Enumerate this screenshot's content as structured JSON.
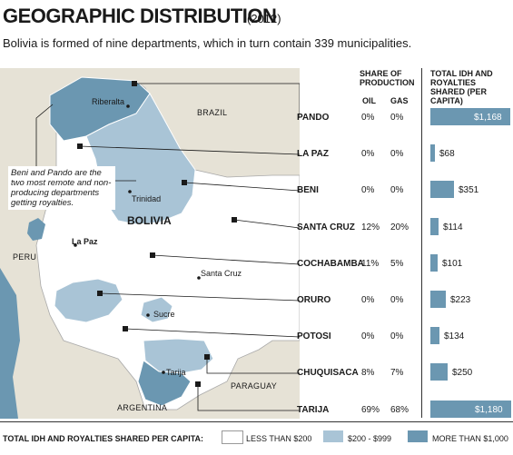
{
  "header": {
    "title": "GEOGRAPHIC DISTRIBUTION",
    "year": "(2012)",
    "subtitle": "Bolivia is formed of nine departments, which in turn contain 339 municipalities."
  },
  "table_headers": {
    "share": "SHARE OF PRODUCTION",
    "oil": "OIL",
    "gas": "GAS",
    "total": "TOTAL IDH AND ROYALTIES SHARED (PER CAPITA)"
  },
  "annotation": "Beni and Pando are the two most remote and non-producing departments getting royalties.",
  "map_labels": {
    "brazil": "BRAZIL",
    "bolivia": "BOLIVIA",
    "peru": "PERU",
    "paraguay": "PARAGUAY",
    "argentina": "ARGENTINA",
    "riberalta": "Riberalta",
    "trinidad": "Trinidad",
    "la_paz": "La Paz",
    "santa_cruz": "Santa Cruz",
    "sucre": "Sucre",
    "tarija": "Tarija"
  },
  "legend": {
    "title": "TOTAL IDH AND ROYALTIES SHARED PER CAPITA:",
    "items": [
      {
        "label": "LESS THAN $200",
        "color": "#ffffff"
      },
      {
        "label": "$200 - $999",
        "color": "#a9c4d6"
      },
      {
        "label": "MORE THAN $1,000",
        "color": "#6b97b1"
      }
    ]
  },
  "colors": {
    "low": "#ffffff",
    "mid": "#a9c4d6",
    "high": "#6b97b1",
    "neighbor": "#e6e2d6",
    "water": "#6b97b1"
  },
  "chart_data": {
    "type": "bar",
    "categories": [
      "PANDO",
      "LA PAZ",
      "BENI",
      "SANTA CRUZ",
      "COCHABAMBA",
      "ORURO",
      "POTOSI",
      "CHUQUISACA",
      "TARIJA"
    ],
    "oil_share": [
      "0%",
      "0%",
      "0%",
      "12%",
      "11%",
      "0%",
      "0%",
      "8%",
      "69%"
    ],
    "gas_share": [
      "0%",
      "0%",
      "0%",
      "20%",
      "5%",
      "0%",
      "0%",
      "7%",
      "68%"
    ],
    "values": [
      1168,
      68,
      351,
      114,
      101,
      223,
      134,
      250,
      1180
    ],
    "value_labels": [
      "$1,168",
      "$68",
      "$351",
      "$114",
      "$101",
      "$223",
      "$134",
      "$250",
      "$1,180"
    ],
    "ylabel": "TOTAL IDH AND ROYALTIES SHARED (PER CAPITA)"
  }
}
